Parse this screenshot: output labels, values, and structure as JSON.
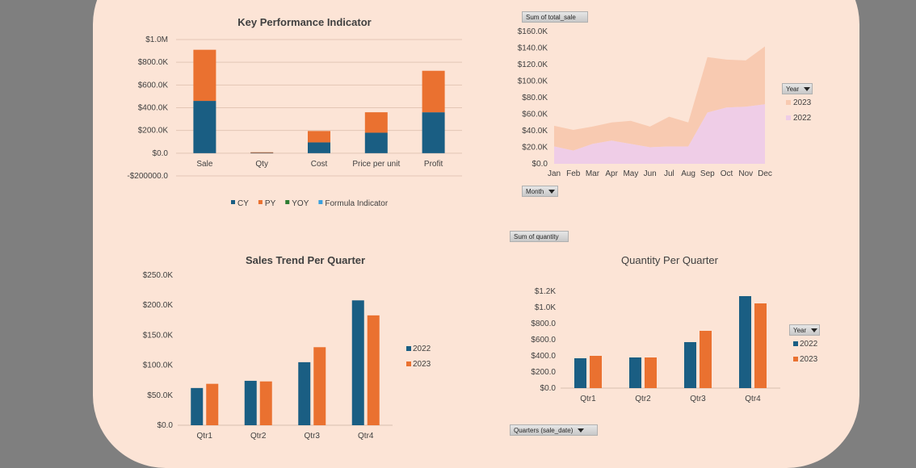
{
  "colors": {
    "background": "#fce4d6",
    "outside": "#7f7f7f",
    "cy": "#1a5e83",
    "py": "#ea7130",
    "yoy": "#2e7d32",
    "formula": "#3aa0de",
    "area_2023": "#f8cab1",
    "area_2022": "#efcde7",
    "year_2022": "#1a5e83",
    "year_2023": "#ea7130"
  },
  "pivot_buttons": {
    "sum_total_sale": "Sum of total_sale",
    "month": "Month",
    "year_area": "Year",
    "sum_quantity": "Sum of quantity",
    "year_qty": "Year",
    "quarters": "Quarters (sale_date)"
  },
  "chart_data": [
    {
      "id": "kpi",
      "type": "bar",
      "stacked": true,
      "title": "Key Performance Indicator",
      "categories": [
        "Sale",
        "Qty",
        "Cost",
        "Price per unit",
        "Profit"
      ],
      "series": [
        {
          "name": "CY",
          "values": [
            460000,
            4000,
            95000,
            180000,
            360000
          ]
        },
        {
          "name": "PY",
          "values": [
            450000,
            4000,
            100000,
            180000,
            365000
          ]
        },
        {
          "name": "YOY",
          "values": [
            0,
            0,
            0,
            0,
            0
          ]
        },
        {
          "name": "Formula Indicator",
          "values": [
            0,
            0,
            0,
            0,
            0
          ]
        }
      ],
      "ylim": [
        -200000,
        1000000
      ],
      "ticks": [
        {
          "v": 1000000,
          "label": "$1.0M"
        },
        {
          "v": 800000,
          "label": "$800.0K"
        },
        {
          "v": 600000,
          "label": "$600.0K"
        },
        {
          "v": 400000,
          "label": "$400.0K"
        },
        {
          "v": 200000,
          "label": "$200.0K"
        },
        {
          "v": 0,
          "label": "$0.0"
        },
        {
          "v": -200000,
          "label": "-$200000.0"
        }
      ],
      "legend_position": "bottom",
      "grid": true
    },
    {
      "id": "area",
      "type": "area",
      "stacked": true,
      "title": "",
      "categories": [
        "Jan",
        "Feb",
        "Mar",
        "Apr",
        "May",
        "Jun",
        "Jul",
        "Aug",
        "Sep",
        "Oct",
        "Nov",
        "Dec"
      ],
      "series": [
        {
          "name": "2022",
          "values": [
            21000,
            16000,
            24000,
            28000,
            24000,
            20000,
            21000,
            21000,
            62000,
            68000,
            69000,
            72000
          ]
        },
        {
          "name": "2023",
          "values": [
            25000,
            25000,
            21000,
            22000,
            28000,
            25000,
            36000,
            29000,
            67000,
            58000,
            56000,
            70000
          ]
        }
      ],
      "ylim": [
        0,
        160000
      ],
      "ticks": [
        {
          "v": 160000,
          "label": "$160.0K"
        },
        {
          "v": 140000,
          "label": "$140.0K"
        },
        {
          "v": 120000,
          "label": "$120.0K"
        },
        {
          "v": 100000,
          "label": "$100.0K"
        },
        {
          "v": 80000,
          "label": "$80.0K"
        },
        {
          "v": 60000,
          "label": "$60.0K"
        },
        {
          "v": 40000,
          "label": "$40.0K"
        },
        {
          "v": 20000,
          "label": "$20.0K"
        },
        {
          "v": 0,
          "label": "$0.0"
        }
      ],
      "legend_position": "right",
      "grid": false
    },
    {
      "id": "sales_quarter",
      "type": "bar",
      "title": "Sales Trend Per Quarter",
      "categories": [
        "Qtr1",
        "Qtr2",
        "Qtr3",
        "Qtr4"
      ],
      "series": [
        {
          "name": "2022",
          "values": [
            62000,
            74000,
            105000,
            208000
          ]
        },
        {
          "name": "2023",
          "values": [
            69000,
            73000,
            130000,
            183000
          ]
        }
      ],
      "ylim": [
        0,
        250000
      ],
      "ticks": [
        {
          "v": 250000,
          "label": "$250.0K"
        },
        {
          "v": 200000,
          "label": "$200.0K"
        },
        {
          "v": 150000,
          "label": "$150.0K"
        },
        {
          "v": 100000,
          "label": "$100.0K"
        },
        {
          "v": 50000,
          "label": "$50.0K"
        },
        {
          "v": 0,
          "label": "$0.0"
        }
      ],
      "legend_position": "right",
      "grid": false
    },
    {
      "id": "qty_quarter",
      "type": "bar",
      "title": "Quantity Per Quarter",
      "categories": [
        "Qtr1",
        "Qtr2",
        "Qtr3",
        "Qtr4"
      ],
      "series": [
        {
          "name": "2022",
          "values": [
            370,
            380,
            570,
            1140
          ]
        },
        {
          "name": "2023",
          "values": [
            400,
            380,
            710,
            1050
          ]
        }
      ],
      "ylim": [
        0,
        1200
      ],
      "ticks": [
        {
          "v": 1200,
          "label": "$1.2K"
        },
        {
          "v": 1000,
          "label": "$1.0K"
        },
        {
          "v": 800,
          "label": "$800.0"
        },
        {
          "v": 600,
          "label": "$600.0"
        },
        {
          "v": 400,
          "label": "$400.0"
        },
        {
          "v": 200,
          "label": "$200.0"
        },
        {
          "v": 0,
          "label": "$0.0"
        }
      ],
      "legend_position": "right",
      "grid": false
    }
  ]
}
